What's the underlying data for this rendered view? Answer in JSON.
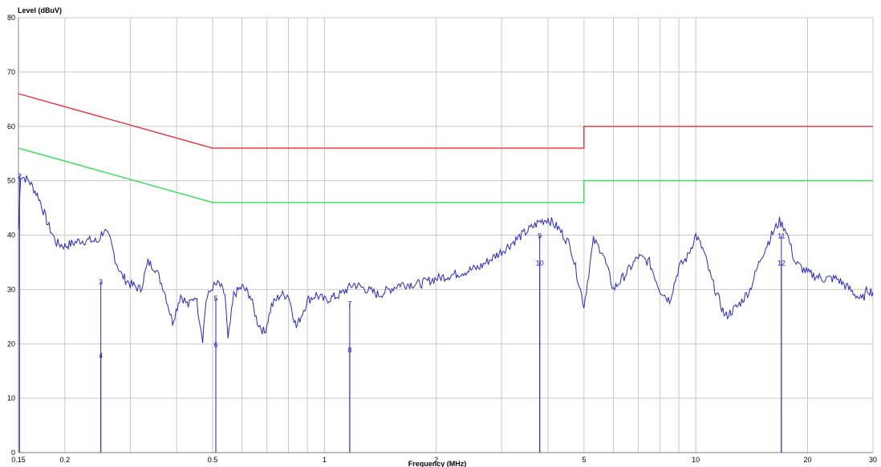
{
  "chart_data": {
    "type": "line",
    "ylabel": "Level (dBuV)",
    "xlabel": "Frequency (MHz)",
    "xscale": "log",
    "xlim": [
      0.15,
      30
    ],
    "ylim": [
      0,
      80
    ],
    "grid": true,
    "legend": "none",
    "x_ticks": [
      {
        "value": 0.15,
        "label": "0.15"
      },
      {
        "value": 0.2,
        "label": "0.2"
      },
      {
        "value": 0.5,
        "label": "0.5"
      },
      {
        "value": 1,
        "label": "1"
      },
      {
        "value": 2,
        "label": "2"
      },
      {
        "value": 5,
        "label": "5"
      },
      {
        "value": 10,
        "label": "10"
      },
      {
        "value": 20,
        "label": "20"
      },
      {
        "value": 30,
        "label": "30"
      }
    ],
    "y_ticks": [
      0,
      10,
      20,
      30,
      40,
      50,
      60,
      70,
      80
    ],
    "limit_lines": [
      {
        "color": "#e8303a",
        "points": [
          [
            0.15,
            66
          ],
          [
            0.5,
            56
          ],
          [
            5,
            56
          ],
          [
            5,
            60
          ],
          [
            30,
            60
          ]
        ]
      },
      {
        "color": "#33dd55",
        "points": [
          [
            0.15,
            56
          ],
          [
            0.5,
            46
          ],
          [
            5,
            46
          ],
          [
            5,
            50
          ],
          [
            30,
            50
          ]
        ]
      }
    ],
    "trace": {
      "color": "#2727c9",
      "points": [
        [
          0.15,
          41
        ],
        [
          0.152,
          51
        ],
        [
          0.16,
          50
        ],
        [
          0.17,
          47
        ],
        [
          0.18,
          42
        ],
        [
          0.19,
          38.5
        ],
        [
          0.2,
          38
        ],
        [
          0.21,
          38.5
        ],
        [
          0.22,
          39
        ],
        [
          0.235,
          39
        ],
        [
          0.245,
          38.8
        ],
        [
          0.255,
          41
        ],
        [
          0.265,
          39
        ],
        [
          0.275,
          35
        ],
        [
          0.285,
          32.5
        ],
        [
          0.3,
          31
        ],
        [
          0.32,
          30
        ],
        [
          0.335,
          35
        ],
        [
          0.35,
          34
        ],
        [
          0.37,
          30
        ],
        [
          0.39,
          24
        ],
        [
          0.41,
          29
        ],
        [
          0.43,
          27
        ],
        [
          0.45,
          29
        ],
        [
          0.47,
          21
        ],
        [
          0.48,
          28
        ],
        [
          0.5,
          30.5
        ],
        [
          0.52,
          31
        ],
        [
          0.54,
          29
        ],
        [
          0.55,
          20.5
        ],
        [
          0.57,
          29
        ],
        [
          0.6,
          30.5
        ],
        [
          0.63,
          29
        ],
        [
          0.66,
          24
        ],
        [
          0.69,
          22
        ],
        [
          0.72,
          27
        ],
        [
          0.76,
          29
        ],
        [
          0.8,
          29
        ],
        [
          0.84,
          23
        ],
        [
          0.9,
          28
        ],
        [
          0.95,
          29
        ],
        [
          1,
          28
        ],
        [
          1.1,
          29
        ],
        [
          1.2,
          31
        ],
        [
          1.3,
          30
        ],
        [
          1.4,
          29
        ],
        [
          1.6,
          31
        ],
        [
          1.8,
          31
        ],
        [
          2,
          32
        ],
        [
          2.3,
          33
        ],
        [
          2.6,
          34
        ],
        [
          3,
          37
        ],
        [
          3.4,
          40
        ],
        [
          3.8,
          42.5
        ],
        [
          4,
          43
        ],
        [
          4.3,
          41
        ],
        [
          4.6,
          38
        ],
        [
          5,
          27
        ],
        [
          5.3,
          39
        ],
        [
          5.6,
          37
        ],
        [
          6,
          30
        ],
        [
          6.5,
          33
        ],
        [
          7,
          36
        ],
        [
          7.5,
          35
        ],
        [
          8,
          30
        ],
        [
          8.5,
          28
        ],
        [
          9,
          34
        ],
        [
          9.5,
          36
        ],
        [
          10,
          40
        ],
        [
          10.5,
          37
        ],
        [
          11,
          32
        ],
        [
          12,
          25
        ],
        [
          13,
          27
        ],
        [
          14,
          30
        ],
        [
          15,
          36
        ],
        [
          16,
          40
        ],
        [
          16.8,
          42.5
        ],
        [
          17.5,
          41
        ],
        [
          18.5,
          35
        ],
        [
          20,
          33
        ],
        [
          22,
          32
        ],
        [
          24,
          32
        ],
        [
          26,
          30
        ],
        [
          28,
          28
        ],
        [
          29,
          30
        ],
        [
          30,
          29.5
        ]
      ]
    },
    "markers": [
      {
        "label": "2",
        "x": 0.151,
        "y": 51
      },
      {
        "label": "3",
        "x": 0.25,
        "y": 31.5
      },
      {
        "label": "4",
        "x": 0.25,
        "y": 18
      },
      {
        "label": "5",
        "x": 0.51,
        "y": 28.5
      },
      {
        "label": "6",
        "x": 0.51,
        "y": 20
      },
      {
        "label": "7",
        "x": 1.17,
        "y": 27.5
      },
      {
        "label": "8",
        "x": 1.17,
        "y": 19
      },
      {
        "label": "9",
        "x": 3.8,
        "y": 40
      },
      {
        "label": "10",
        "x": 3.8,
        "y": 35
      },
      {
        "label": "11",
        "x": 17,
        "y": 40
      },
      {
        "label": "12",
        "x": 17,
        "y": 35
      }
    ]
  }
}
